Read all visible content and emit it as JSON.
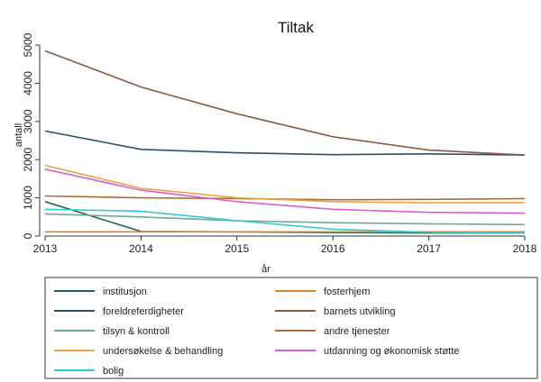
{
  "chart_data": {
    "type": "line",
    "title": "Tiltak",
    "xlabel": "år",
    "ylabel": "antall",
    "x": [
      2013,
      2014,
      2015,
      2016,
      2017,
      2018
    ],
    "xlim": [
      2013,
      2018
    ],
    "ylim": [
      0,
      5000
    ],
    "yticks": [
      0,
      1000,
      2000,
      3000,
      4000,
      5000
    ],
    "grid": false,
    "legend_position": "bottom",
    "legend_columns": 2,
    "series": [
      {
        "name": "institusjon",
        "color": "#1e6b4a",
        "values": [
          900,
          120,
          110,
          90,
          80,
          80
        ]
      },
      {
        "name": "fosterhjem",
        "color": "#e0822b",
        "values": [
          110,
          110,
          110,
          110,
          110,
          110
        ]
      },
      {
        "name": "foreldreferdigheter",
        "color": "#2e4e68",
        "values": [
          2750,
          2270,
          2180,
          2130,
          2150,
          2120
        ]
      },
      {
        "name": "barnets utvikling",
        "color": "#8a5a4a",
        "values": [
          4850,
          3900,
          3200,
          2600,
          2250,
          2120
        ]
      },
      {
        "name": "tilsyn & kontroll",
        "color": "#6fa89c",
        "values": [
          580,
          500,
          400,
          350,
          320,
          300
        ]
      },
      {
        "name": "andre tjenester",
        "color": "#b06a3b",
        "values": [
          1050,
          1000,
          980,
          950,
          960,
          980
        ]
      },
      {
        "name": "undersøkelse & behandling",
        "color": "#f0a040",
        "values": [
          1850,
          1250,
          1000,
          900,
          870,
          870
        ]
      },
      {
        "name": "utdanning og økonomisk støtte",
        "color": "#d45fd0",
        "values": [
          1750,
          1200,
          900,
          700,
          620,
          600
        ]
      },
      {
        "name": "bolig",
        "color": "#35c8d8",
        "values": [
          700,
          650,
          400,
          180,
          100,
          80
        ]
      }
    ]
  }
}
